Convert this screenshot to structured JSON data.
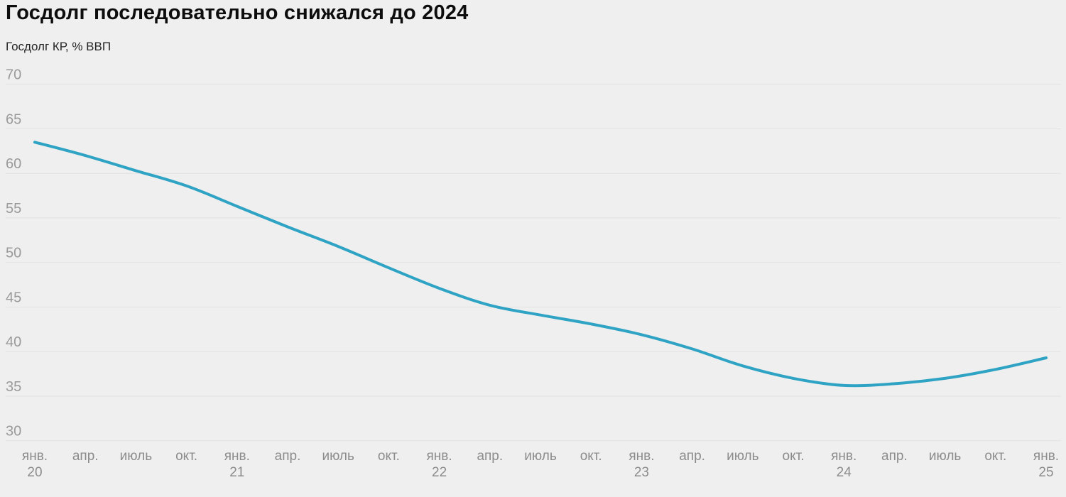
{
  "page": {
    "title": "Госдолг последовательно снижался до 2024",
    "subtitle": "Госдолг КР, % ВВП"
  },
  "colors": {
    "background": "#efefef",
    "line": "#2fa3c4",
    "gridline": "#e2e2e2",
    "title_text": "#0d0d0d",
    "subtitle_text": "#262626",
    "y_axis_text": "#9a9a9a",
    "x_axis_text": "#8c8c8c"
  },
  "chart_data": {
    "type": "line",
    "title": "Госдолг последовательно снижался до 2024",
    "subtitle": "Госдолг КР, % ВВП",
    "xlabel": "",
    "ylabel": "Госдолг КР, % ВВП",
    "ylim": [
      30,
      70
    ],
    "yticks": [
      70,
      65,
      60,
      55,
      50,
      45,
      40,
      35,
      30
    ],
    "grid": "horizontal",
    "legend": "none",
    "x_ticks": [
      {
        "month": "янв.",
        "year": "20"
      },
      {
        "month": "апр."
      },
      {
        "month": "июль"
      },
      {
        "month": "окт."
      },
      {
        "month": "янв.",
        "year": "21"
      },
      {
        "month": "апр."
      },
      {
        "month": "июль"
      },
      {
        "month": "окт."
      },
      {
        "month": "янв.",
        "year": "22"
      },
      {
        "month": "апр."
      },
      {
        "month": "июль"
      },
      {
        "month": "окт."
      },
      {
        "month": "янв.",
        "year": "23"
      },
      {
        "month": "апр."
      },
      {
        "month": "июль"
      },
      {
        "month": "окт."
      },
      {
        "month": "янв.",
        "year": "24"
      },
      {
        "month": "апр."
      },
      {
        "month": "июль"
      },
      {
        "month": "окт."
      },
      {
        "month": "янв.",
        "year": "25"
      }
    ],
    "series": [
      {
        "name": "Госдолг КР, % ВВП",
        "values": [
          63.5,
          62.0,
          60.3,
          58.6,
          56.3,
          54.0,
          51.8,
          49.4,
          47.1,
          45.2,
          44.1,
          43.1,
          41.9,
          40.3,
          38.4,
          37.0,
          36.2,
          36.4,
          37.0,
          38.0,
          39.3
        ]
      }
    ]
  }
}
